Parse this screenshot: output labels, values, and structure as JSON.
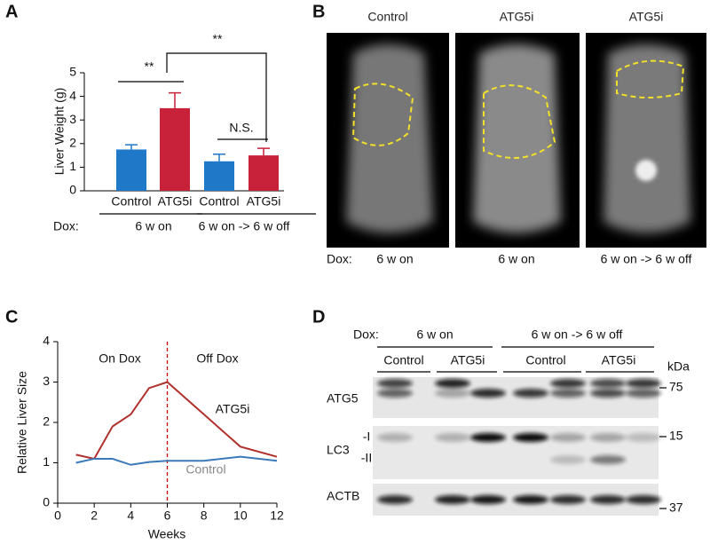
{
  "panels": [
    "A",
    "B",
    "C",
    "D"
  ],
  "chart_data": [
    {
      "type": "bar",
      "ylabel": "Liver Weight (g)",
      "categories": [
        "Control",
        "ATG5i",
        "Control",
        "ATG5i"
      ],
      "values": [
        1.75,
        3.5,
        1.25,
        1.5
      ],
      "errors": [
        0.2,
        0.65,
        0.3,
        0.3
      ],
      "colors": [
        "#1f78c8",
        "#c8213a",
        "#1f78c8",
        "#c8213a"
      ],
      "ylim": [
        0,
        5
      ],
      "yticks": [
        0,
        1,
        2,
        3,
        4,
        5
      ],
      "dox_label": "Dox:",
      "groups": [
        "6 w on",
        "6 w on -> 6 w off"
      ],
      "annotations": [
        "**",
        "**",
        "N.S."
      ]
    },
    {
      "type": "line",
      "xlabel": "Weeks",
      "ylabel": "Relative Liver Size",
      "x": [
        1,
        2,
        3,
        4,
        5,
        6,
        8,
        10,
        12
      ],
      "series": [
        {
          "name": "ATG5i",
          "color": "#b0302c",
          "values": [
            1.2,
            1.1,
            1.9,
            2.2,
            2.85,
            3.0,
            2.2,
            1.4,
            1.15
          ]
        },
        {
          "name": "Control",
          "color": "#3a7ab8",
          "values": [
            1.0,
            1.1,
            1.1,
            0.95,
            1.02,
            1.05,
            1.05,
            1.15,
            1.05
          ]
        }
      ],
      "xlim": [
        0,
        12
      ],
      "xticks": [
        0,
        2,
        4,
        6,
        8,
        10,
        12
      ],
      "ylim": [
        0,
        4
      ],
      "yticks": [
        0,
        1,
        2,
        3,
        4
      ],
      "marker_x": 6,
      "annotations": [
        "On Dox",
        "Off Dox"
      ]
    }
  ],
  "mri": {
    "titles": [
      "Control",
      "ATG5i",
      "ATG5i"
    ],
    "dox_label": "Dox:",
    "dox": [
      "6 w on",
      "6 w on",
      "6 w on -> 6 w off"
    ]
  },
  "blot": {
    "dox_label": "Dox:",
    "groups": [
      "6 w on",
      "6 w on -> 6 w off"
    ],
    "lanes": [
      "Control",
      "ATG5i",
      "Control",
      "ATG5i"
    ],
    "rows": [
      "ATG5",
      "LC3",
      "ACTB"
    ],
    "lc3_forms": [
      "-I",
      "-II"
    ],
    "unit": "kDa",
    "markers": [
      75,
      15,
      37
    ]
  }
}
